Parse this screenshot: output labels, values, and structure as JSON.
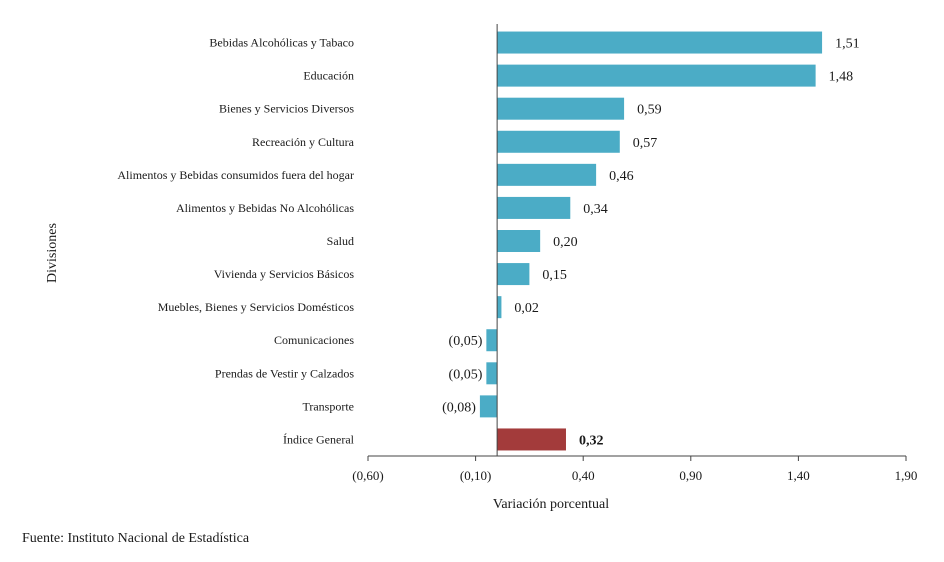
{
  "chart_data": {
    "type": "bar",
    "orientation": "horizontal",
    "ylabel": "Divisiones",
    "xlabel": "Variación porcentual",
    "xlim": [
      -0.6,
      1.9
    ],
    "xticks": [
      -0.6,
      -0.1,
      0.4,
      0.9,
      1.4,
      1.9
    ],
    "xtick_labels": [
      "(0,60)",
      "(0,10)",
      "0,40",
      "0,90",
      "1,40",
      "1,90"
    ],
    "categories": [
      "Bebidas Alcohólicas y Tabaco",
      "Educación",
      "Bienes y Servicios Diversos",
      "Recreación y Cultura",
      "Alimentos y Bebidas consumidos fuera del hogar",
      "Alimentos y Bebidas No Alcohólicas",
      "Salud",
      "Vivienda y Servicios Básicos",
      "Muebles, Bienes y Servicios Domésticos",
      "Comunicaciones",
      "Prendas de Vestir y Calzados",
      "Transporte",
      "Índice General"
    ],
    "values": [
      1.51,
      1.48,
      0.59,
      0.57,
      0.46,
      0.34,
      0.2,
      0.15,
      0.02,
      -0.05,
      -0.05,
      -0.08,
      0.32
    ],
    "value_labels": [
      "1,51",
      "1,48",
      "0,59",
      "0,57",
      "0,46",
      "0,34",
      "0,20",
      "0,15",
      "0,02",
      "(0,05)",
      "(0,05)",
      "(0,08)",
      "0,32"
    ],
    "colors": {
      "default": "#4bacc6",
      "highlight": "#a33b3b"
    },
    "highlight_index": 12,
    "grid": false,
    "legend": "none"
  },
  "footer": {
    "source": "Fuente: Instituto Nacional de Estadística"
  }
}
